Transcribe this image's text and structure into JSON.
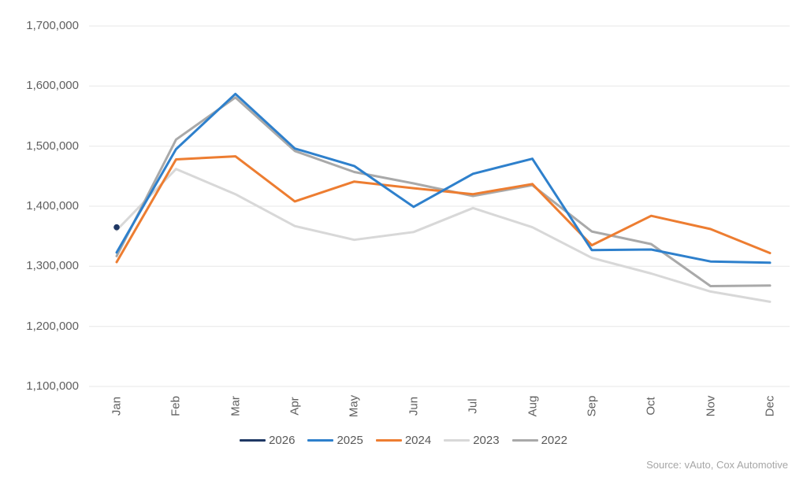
{
  "chart_data": {
    "type": "line",
    "categories": [
      "Jan",
      "Feb",
      "Mar",
      "Apr",
      "May",
      "Jun",
      "Jul",
      "Aug",
      "Sep",
      "Oct",
      "Nov",
      "Dec"
    ],
    "series": [
      {
        "name": "2026",
        "color": "#1F3864",
        "values": [
          1365000,
          null,
          null,
          null,
          null,
          null,
          null,
          null,
          null,
          null,
          null,
          null
        ]
      },
      {
        "name": "2025",
        "color": "#2E80CC",
        "values": [
          1323000,
          1495000,
          1587000,
          1496000,
          1467000,
          1399000,
          1454000,
          1479000,
          1327000,
          1328000,
          1308000,
          1306000
        ]
      },
      {
        "name": "2024",
        "color": "#ED7D31",
        "values": [
          1307000,
          1478000,
          1483000,
          1408000,
          1441000,
          1430000,
          1420000,
          1437000,
          1335000,
          1384000,
          1362000,
          1322000
        ]
      },
      {
        "name": "2023",
        "color": "#D8D8D8",
        "values": [
          1360000,
          1462000,
          1420000,
          1367000,
          1344000,
          1357000,
          1397000,
          1365000,
          1314000,
          1288000,
          1258000,
          1241000
        ]
      },
      {
        "name": "2022",
        "color": "#A9A9A9",
        "values": [
          1317000,
          1511000,
          1581000,
          1492000,
          1457000,
          1438000,
          1417000,
          1435000,
          1358000,
          1337000,
          1267000,
          1268000
        ]
      }
    ],
    "y_axis": {
      "min": 1100000,
      "max": 1700000,
      "tick_values": [
        1700000,
        1600000,
        1500000,
        1400000,
        1300000,
        1200000,
        1100000
      ],
      "tick_labels": [
        "1,700,000",
        "1,600,000",
        "1,500,000",
        "1,400,000",
        "1,300,000",
        "1,200,000",
        "1,100,000"
      ]
    },
    "legend": {
      "position": "bottom",
      "labels": [
        "2026",
        "2025",
        "2024",
        "2023",
        "2022"
      ]
    },
    "grid": "horizontal",
    "gridline_color": "#E7E7E7",
    "source": "Source: vAuto, Cox Automotive"
  }
}
